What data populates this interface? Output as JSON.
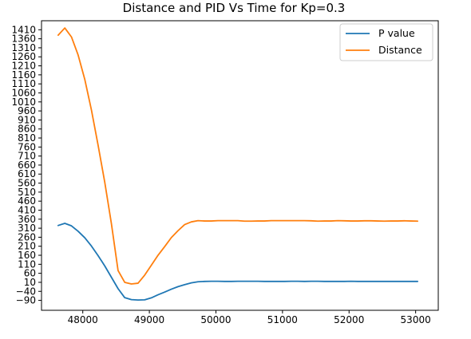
{
  "chart_data": {
    "type": "line",
    "title": "Distance and PID Vs Time for Kp=0.3",
    "xlabel": "",
    "ylabel": "",
    "xlim": [
      47380,
      53340
    ],
    "ylim": [
      -145,
      1460
    ],
    "x_ticks": [
      48000,
      49000,
      50000,
      51000,
      52000,
      53000
    ],
    "y_ticks": [
      -90,
      -40,
      10,
      60,
      110,
      160,
      210,
      260,
      310,
      360,
      410,
      460,
      510,
      560,
      610,
      660,
      710,
      760,
      810,
      860,
      910,
      960,
      1010,
      1060,
      1110,
      1160,
      1210,
      1260,
      1310,
      1360,
      1410
    ],
    "grid": false,
    "legend_position": "top-right",
    "x": [
      47630,
      47730,
      47830,
      47930,
      48030,
      48130,
      48230,
      48330,
      48430,
      48530,
      48630,
      48730,
      48830,
      48930,
      49030,
      49130,
      49230,
      49330,
      49430,
      49530,
      49630,
      49730,
      49830,
      49930,
      50030,
      50130,
      50230,
      50330,
      50430,
      50530,
      50630,
      50730,
      50830,
      50930,
      51030,
      51130,
      51230,
      51330,
      51430,
      51530,
      51630,
      51730,
      51830,
      51930,
      52030,
      52130,
      52230,
      52330,
      52430,
      52530,
      52630,
      52730,
      52830,
      52930,
      53030
    ],
    "series": [
      {
        "name": "P value",
        "color": "#1f77b4",
        "values": [
          325,
          337,
          323,
          293,
          257,
          211,
          158,
          101,
          38,
          -25,
          -75,
          -86,
          -88,
          -87,
          -76,
          -59,
          -44,
          -28,
          -14,
          -3,
          7,
          13,
          15,
          16,
          16,
          15,
          15,
          16,
          16,
          16,
          16,
          15,
          15,
          15,
          15,
          16,
          16,
          15,
          16,
          16,
          15,
          15,
          15,
          15,
          16,
          15,
          15,
          15,
          15,
          15,
          15,
          15,
          15,
          15,
          15
        ]
      },
      {
        "name": "Distance",
        "color": "#ff7f0e",
        "values": [
          1380,
          1420,
          1370,
          1270,
          1135,
          965,
          770,
          565,
          335,
          75,
          10,
          1,
          5,
          50,
          105,
          160,
          208,
          258,
          296,
          330,
          345,
          352,
          350,
          350,
          352,
          352,
          352,
          352,
          349,
          349,
          350,
          350,
          352,
          352,
          352,
          352,
          352,
          352,
          351,
          349,
          350,
          350,
          352,
          351,
          350,
          350,
          351,
          351,
          350,
          349,
          350,
          350,
          351,
          350,
          349
        ]
      }
    ]
  }
}
